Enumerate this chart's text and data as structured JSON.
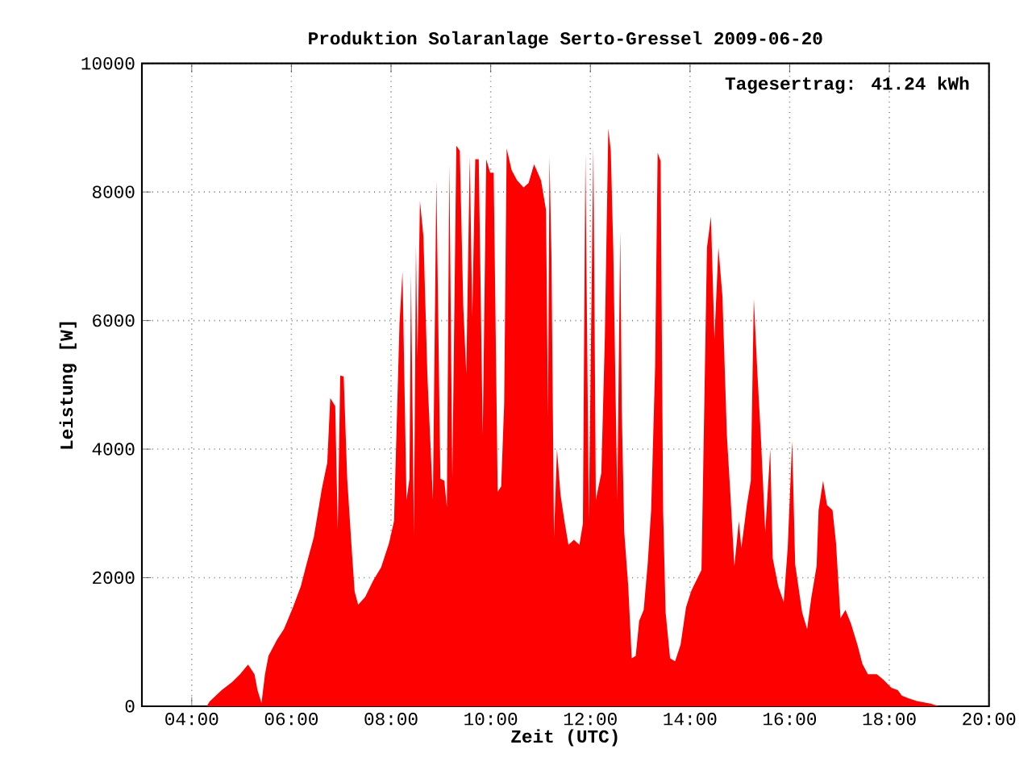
{
  "chart_data": {
    "type": "area",
    "title": "Produktion Solaranlage Serto-Gressel 2009-06-20",
    "xlabel": "Zeit (UTC)",
    "ylabel": "Leistung [W]",
    "annotations": [
      "Tagesertrag: 41.24 kWh"
    ],
    "x": [
      4.3,
      4.36,
      4.6,
      4.81,
      4.97,
      5.13,
      5.26,
      5.32,
      5.4,
      5.47,
      5.54,
      5.71,
      5.85,
      6.03,
      6.19,
      6.3,
      6.45,
      6.61,
      6.72,
      6.78,
      6.88,
      6.93,
      6.98,
      7.05,
      7.12,
      7.21,
      7.27,
      7.34,
      7.48,
      7.64,
      7.8,
      7.96,
      8.06,
      8.17,
      8.23,
      8.31,
      8.37,
      8.4,
      8.46,
      8.5,
      8.53,
      8.58,
      8.65,
      8.73,
      8.84,
      8.91,
      8.99,
      9.07,
      9.12,
      9.17,
      9.23,
      9.31,
      9.38,
      9.45,
      9.51,
      9.58,
      9.63,
      9.69,
      9.76,
      9.84,
      9.91,
      9.99,
      10.06,
      10.14,
      10.21,
      10.27,
      10.32,
      10.42,
      10.53,
      10.66,
      10.76,
      10.87,
      11.01,
      11.11,
      11.15,
      11.18,
      11.22,
      11.27,
      11.33,
      11.4,
      11.48,
      11.56,
      11.67,
      11.78,
      11.85,
      11.9,
      11.97,
      12.06,
      12.11,
      12.22,
      12.29,
      12.36,
      12.41,
      12.46,
      12.54,
      12.6,
      12.63,
      12.68,
      12.76,
      12.83,
      12.91,
      12.98,
      13.07,
      13.15,
      13.22,
      13.3,
      13.35,
      13.41,
      13.46,
      13.51,
      13.6,
      13.7,
      13.81,
      13.92,
      14.02,
      14.07,
      14.23,
      14.34,
      14.42,
      14.49,
      14.57,
      14.65,
      14.74,
      14.81,
      14.89,
      14.98,
      15.03,
      15.14,
      15.22,
      15.28,
      15.35,
      15.42,
      15.51,
      15.61,
      15.66,
      15.77,
      15.88,
      15.96,
      16.05,
      16.11,
      16.25,
      16.35,
      16.43,
      16.54,
      16.58,
      16.67,
      16.75,
      16.86,
      16.93,
      17.02,
      17.12,
      17.23,
      17.36,
      17.46,
      17.57,
      17.75,
      17.88,
      18.04,
      18.17,
      18.25,
      18.38,
      18.55,
      18.83,
      19.0
    ],
    "series": [
      {
        "color": "#ff0000",
        "values": [
          0,
          75,
          250,
          375,
          500,
          650,
          500,
          250,
          50,
          500,
          785,
          1035,
          1200,
          1535,
          1870,
          2200,
          2630,
          3380,
          3790,
          4795,
          4670,
          2755,
          5145,
          5130,
          3540,
          2455,
          1785,
          1580,
          1700,
          1955,
          2160,
          2540,
          2880,
          5965,
          6760,
          3210,
          3540,
          6720,
          2660,
          7175,
          5430,
          7860,
          7310,
          5135,
          3210,
          8180,
          3540,
          3510,
          3090,
          8430,
          3540,
          8720,
          8640,
          6215,
          5170,
          8550,
          6050,
          8510,
          8510,
          4210,
          8510,
          8300,
          8300,
          3335,
          3420,
          4710,
          8680,
          8340,
          8180,
          8070,
          8140,
          8430,
          8180,
          7720,
          4500,
          8550,
          6970,
          2630,
          4000,
          3300,
          2880,
          2510,
          2590,
          2510,
          2840,
          8590,
          2920,
          8720,
          3210,
          3630,
          5720,
          8990,
          8640,
          7100,
          3210,
          7390,
          4630,
          2710,
          1870,
          745,
          785,
          1330,
          1500,
          2210,
          3050,
          5300,
          8610,
          8480,
          3050,
          1460,
          745,
          700,
          955,
          1540,
          1785,
          1870,
          2120,
          7135,
          7620,
          5720,
          7135,
          6380,
          4210,
          3300,
          2180,
          2880,
          2460,
          3130,
          3510,
          6340,
          5210,
          4210,
          2710,
          4000,
          2300,
          1870,
          1620,
          2460,
          4130,
          2210,
          1460,
          1200,
          1670,
          2180,
          3050,
          3510,
          3130,
          3050,
          2540,
          1370,
          1500,
          1285,
          955,
          660,
          500,
          500,
          415,
          290,
          250,
          165,
          125,
          80,
          40,
          0
        ]
      }
    ],
    "xlim": [
      3,
      20
    ],
    "ylim": [
      0,
      10000
    ],
    "xticks": [
      {
        "value": 4,
        "label": "04:00"
      },
      {
        "value": 6,
        "label": "06:00"
      },
      {
        "value": 8,
        "label": "08:00"
      },
      {
        "value": 10,
        "label": "10:00"
      },
      {
        "value": 12,
        "label": "12:00"
      },
      {
        "value": 14,
        "label": "14:00"
      },
      {
        "value": 16,
        "label": "16:00"
      },
      {
        "value": 18,
        "label": "18:00"
      },
      {
        "value": 20,
        "label": "20:00"
      }
    ],
    "yticks": [
      0,
      2000,
      4000,
      6000,
      8000,
      10000
    ],
    "grid": true
  }
}
